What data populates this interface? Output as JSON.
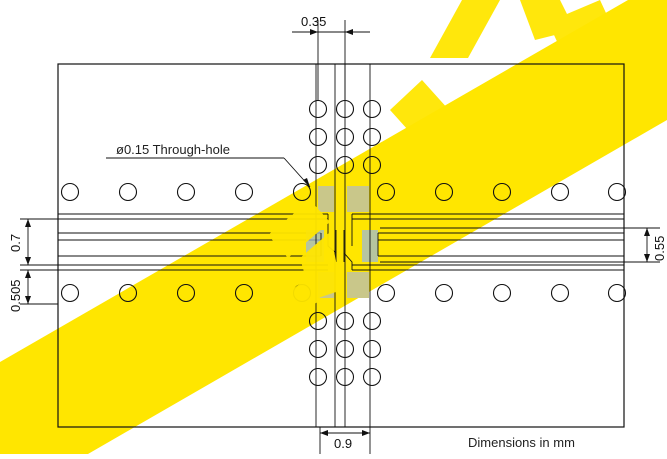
{
  "watermark": {
    "color": "#FFE600",
    "fill_overlay": "#C9C78A"
  },
  "drawing": {
    "note": "Dimensions in mm",
    "via_callout": "ø0.15 Through-hole",
    "dimensions": {
      "top_pitch": "0.35",
      "bottom_pitch": "0.9",
      "left_upper": "0.7",
      "left_lower": "0.505",
      "right": "0.55"
    },
    "colors": {
      "line": "#111111",
      "pad_fill": "#C9C78A",
      "pad_fill_blue": "#9DB9D6"
    }
  }
}
